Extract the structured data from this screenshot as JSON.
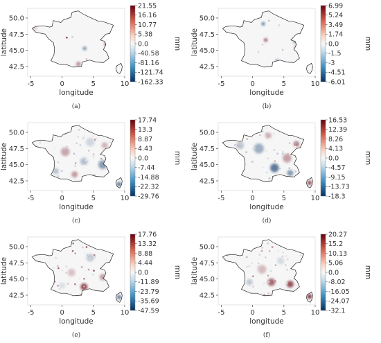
{
  "chart_data": [
    {
      "type": "heatmap",
      "caption": "(a)",
      "xlabel": "longitude",
      "ylabel": "latitude",
      "xticks": [
        -5,
        0,
        5,
        10
      ],
      "yticks": [
        42.5,
        45.0,
        47.5,
        50.0
      ],
      "xlim": [
        -5.5,
        10
      ],
      "ylim": [
        41,
        51.5
      ],
      "colorbar": {
        "unit": "mm",
        "ticks": [
          21.55,
          16.16,
          10.77,
          5.38,
          0.0,
          -40.58,
          -81.16,
          -121.74,
          -162.33
        ],
        "max": 21.55,
        "min": -162.33
      },
      "anomalies": [
        {
          "lon": 7.2,
          "lat": 46.0,
          "value": 12,
          "r": 0.45
        },
        {
          "lon": 3.6,
          "lat": 45.3,
          "value": -90,
          "r": 0.3
        },
        {
          "lon": 2.6,
          "lat": 42.9,
          "value": 10,
          "r": 0.35
        },
        {
          "lon": -4.3,
          "lat": 48.4,
          "value": 5,
          "r": 0.2
        }
      ]
    },
    {
      "type": "heatmap",
      "caption": "(b)",
      "xlabel": "longitude",
      "ylabel": "latitude",
      "xticks": [
        -5,
        0,
        5,
        10
      ],
      "yticks": [
        42.5,
        45.0,
        47.5,
        50.0
      ],
      "xlim": [
        -5.5,
        10
      ],
      "ylim": [
        41,
        51.5
      ],
      "colorbar": {
        "unit": "mm",
        "ticks": [
          6.99,
          5.24,
          3.49,
          1.74,
          0.0,
          -1.5,
          -3.0,
          -4.51,
          -6.01
        ],
        "max": 6.99,
        "min": -6.01
      },
      "anomalies": [
        {
          "lon": 6.9,
          "lat": 46.5,
          "value": -3,
          "r": 0.45
        },
        {
          "lon": 7.0,
          "lat": 45.5,
          "value": 3,
          "r": 0.3
        },
        {
          "lon": 1.7,
          "lat": 49.1,
          "value": -4,
          "r": 0.25
        },
        {
          "lon": 2.1,
          "lat": 46.6,
          "value": 5,
          "r": 0.2
        },
        {
          "lon": 3.9,
          "lat": 43.4,
          "value": -2.5,
          "r": 0.2
        }
      ]
    },
    {
      "type": "heatmap",
      "caption": "(c)",
      "xlabel": "longitude",
      "ylabel": "latitude",
      "xticks": [
        -5,
        0,
        5,
        10
      ],
      "yticks": [
        42.5,
        45.0,
        47.5,
        50.0
      ],
      "xlim": [
        -5.5,
        10
      ],
      "ylim": [
        41,
        51.5
      ],
      "colorbar": {
        "unit": "mm",
        "ticks": [
          17.74,
          13.3,
          8.87,
          4.43,
          0.0,
          -7.44,
          -14.88,
          -22.32,
          -29.76
        ],
        "max": 17.74,
        "min": -29.76
      },
      "anomalies": [
        {
          "lon": 6.5,
          "lat": 45.0,
          "value": -14,
          "r": 0.7
        },
        {
          "lon": 3.5,
          "lat": 45.5,
          "value": -9,
          "r": 0.6
        },
        {
          "lon": 0.5,
          "lat": 47.0,
          "value": 6,
          "r": 0.7
        },
        {
          "lon": 4.5,
          "lat": 48.5,
          "value": -5,
          "r": 0.7
        },
        {
          "lon": -1.0,
          "lat": 44.0,
          "value": -8,
          "r": 0.5
        },
        {
          "lon": 2.0,
          "lat": 43.5,
          "value": 7,
          "r": 0.5
        },
        {
          "lon": 9.1,
          "lat": 42.0,
          "value": -20,
          "r": 0.35
        },
        {
          "lon": 6.8,
          "lat": 48.0,
          "value": 5,
          "r": 0.5
        }
      ]
    },
    {
      "type": "heatmap",
      "caption": "(d)",
      "xlabel": "longitude",
      "ylabel": "latitude",
      "xticks": [
        -5,
        0,
        5,
        10
      ],
      "yticks": [
        42.5,
        45.0,
        47.5,
        50.0
      ],
      "xlim": [
        -5.5,
        10
      ],
      "ylim": [
        41,
        51.5
      ],
      "colorbar": {
        "unit": "mm",
        "ticks": [
          16.53,
          12.39,
          8.26,
          4.13,
          0.0,
          -4.57,
          -9.15,
          -13.73,
          -18.3
        ],
        "max": 16.53,
        "min": -18.3
      },
      "anomalies": [
        {
          "lon": 3.5,
          "lat": 44.5,
          "value": -12,
          "r": 0.7
        },
        {
          "lon": 1.0,
          "lat": 47.5,
          "value": -7,
          "r": 0.8
        },
        {
          "lon": 5.5,
          "lat": 46.0,
          "value": 6,
          "r": 0.7
        },
        {
          "lon": 7.0,
          "lat": 48.2,
          "value": 9,
          "r": 0.45
        },
        {
          "lon": -2.0,
          "lat": 48.0,
          "value": -5,
          "r": 0.6
        },
        {
          "lon": 6.0,
          "lat": 43.7,
          "value": -9,
          "r": 0.5
        },
        {
          "lon": 9.1,
          "lat": 42.2,
          "value": 12,
          "r": 0.35
        },
        {
          "lon": 2.5,
          "lat": 49.5,
          "value": 5,
          "r": 0.5
        }
      ]
    },
    {
      "type": "heatmap",
      "caption": "(e)",
      "xlabel": "longitude",
      "ylabel": "latitude",
      "xticks": [
        -5,
        0,
        5,
        10
      ],
      "yticks": [
        42.5,
        45.0,
        47.5,
        50.0
      ],
      "xlim": [
        -5.5,
        10
      ],
      "ylim": [
        41,
        51.5
      ],
      "colorbar": {
        "unit": "mm",
        "ticks": [
          17.76,
          13.32,
          8.88,
          4.44,
          0.0,
          -11.89,
          -23.79,
          -35.69,
          -47.59
        ],
        "max": 17.76,
        "min": -47.59
      },
      "anomalies": [
        {
          "lon": 3.5,
          "lat": 43.8,
          "value": 13,
          "r": 0.55
        },
        {
          "lon": 4.5,
          "lat": 48.3,
          "value": -12,
          "r": 0.6
        },
        {
          "lon": 6.5,
          "lat": 45.3,
          "value": 7,
          "r": 0.5
        },
        {
          "lon": 1.5,
          "lat": 46.0,
          "value": 4,
          "r": 0.6
        },
        {
          "lon": 9.1,
          "lat": 42.2,
          "value": -30,
          "r": 0.35
        },
        {
          "lon": 0.0,
          "lat": 44.0,
          "value": -6,
          "r": 0.5
        }
      ]
    },
    {
      "type": "heatmap",
      "caption": "(f)",
      "xlabel": "longitude",
      "ylabel": "latitude",
      "xticks": [
        -5,
        0,
        5,
        10
      ],
      "yticks": [
        42.5,
        45.0,
        47.5,
        50.0
      ],
      "xlim": [
        -5.5,
        10
      ],
      "ylim": [
        41,
        51.5
      ],
      "colorbar": {
        "unit": "mm",
        "ticks": [
          20.27,
          15.2,
          10.13,
          5.06,
          0.0,
          -8.02,
          -16.05,
          -24.07,
          -32.1
        ],
        "max": 20.27,
        "min": -32.1
      },
      "anomalies": [
        {
          "lon": 3.0,
          "lat": 44.5,
          "value": 12,
          "r": 0.6
        },
        {
          "lon": 6.0,
          "lat": 44.2,
          "value": 14,
          "r": 0.55
        },
        {
          "lon": 1.5,
          "lat": 46.5,
          "value": 5,
          "r": 0.7
        },
        {
          "lon": -0.5,
          "lat": 44.5,
          "value": -8,
          "r": 0.5
        },
        {
          "lon": 9.1,
          "lat": 42.3,
          "value": 18,
          "r": 0.35
        },
        {
          "lon": 4.5,
          "lat": 47.8,
          "value": -5,
          "r": 0.55
        }
      ]
    }
  ]
}
